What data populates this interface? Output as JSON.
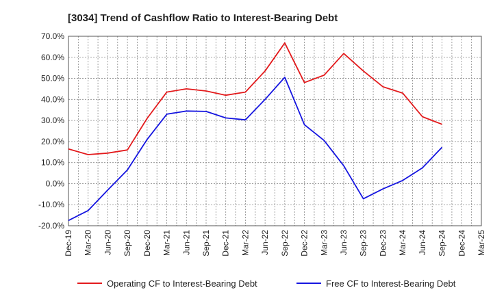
{
  "chart_data": {
    "type": "line",
    "title": "[3034]  Trend of Cashflow Ratio to Interest-Bearing Debt",
    "xlabel": "",
    "ylabel": "",
    "categories": [
      "Dec-19",
      "Mar-20",
      "Jun-20",
      "Sep-20",
      "Dec-20",
      "Mar-21",
      "Jun-21",
      "Sep-21",
      "Dec-21",
      "Mar-22",
      "Jun-22",
      "Sep-22",
      "Dec-22",
      "Mar-23",
      "Jun-23",
      "Sep-23",
      "Dec-23",
      "Mar-24",
      "Jun-24",
      "Sep-24",
      "Dec-24",
      "Mar-25"
    ],
    "ylim": [
      -20,
      70
    ],
    "yticks": [
      -20,
      -10,
      0,
      10,
      20,
      30,
      40,
      50,
      60,
      70
    ],
    "ytick_labels": [
      "-20.0%",
      "-10.0%",
      "0.0%",
      "10.0%",
      "20.0%",
      "30.0%",
      "40.0%",
      "50.0%",
      "60.0%",
      "70.0%"
    ],
    "grid": true,
    "legend_position": "bottom",
    "series": [
      {
        "name": "Operating CF to Interest-Bearing Debt",
        "color": "#e31a1c",
        "values": [
          16.5,
          13.8,
          14.5,
          16.0,
          31.0,
          43.5,
          45.0,
          44.0,
          42.0,
          43.5,
          53.5,
          66.8,
          48.0,
          51.5,
          61.8,
          53.5,
          46.0,
          43.0,
          31.8,
          28.2,
          null,
          null
        ]
      },
      {
        "name": "Free CF to Interest-Bearing Debt",
        "color": "#1515e0",
        "values": [
          -17.5,
          -12.8,
          -3.0,
          6.5,
          21.0,
          33.0,
          34.5,
          34.3,
          31.2,
          30.3,
          40.0,
          50.5,
          28.0,
          20.5,
          8.5,
          -7.2,
          -2.5,
          1.5,
          7.5,
          17.3,
          null,
          null
        ]
      }
    ]
  }
}
